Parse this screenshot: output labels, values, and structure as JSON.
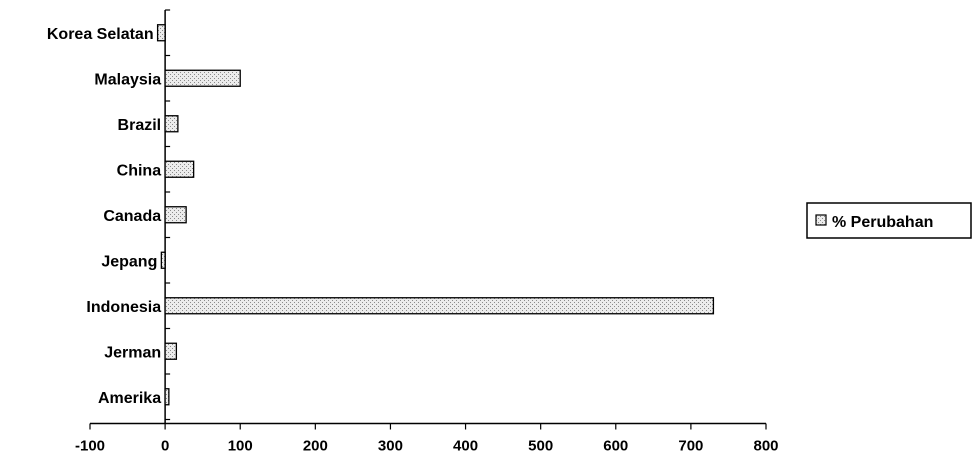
{
  "chart_data": {
    "type": "bar",
    "orientation": "horizontal",
    "categories": [
      "Korea Selatan",
      "Malaysia",
      "Brazil",
      "China",
      "Canada",
      "Jepang",
      "Indonesia",
      "Jerman",
      "Amerika"
    ],
    "series": [
      {
        "name": "% Perubahan",
        "values": [
          -10,
          100,
          17,
          38,
          28,
          -5,
          730,
          15,
          5
        ]
      }
    ],
    "xlim": [
      -100,
      800
    ],
    "xticks": [
      -100,
      0,
      100,
      200,
      300,
      400,
      500,
      600,
      700,
      800
    ],
    "grid": false,
    "legend": "right",
    "bar_fill": "#e6e6e6",
    "bar_stroke": "#000000"
  }
}
